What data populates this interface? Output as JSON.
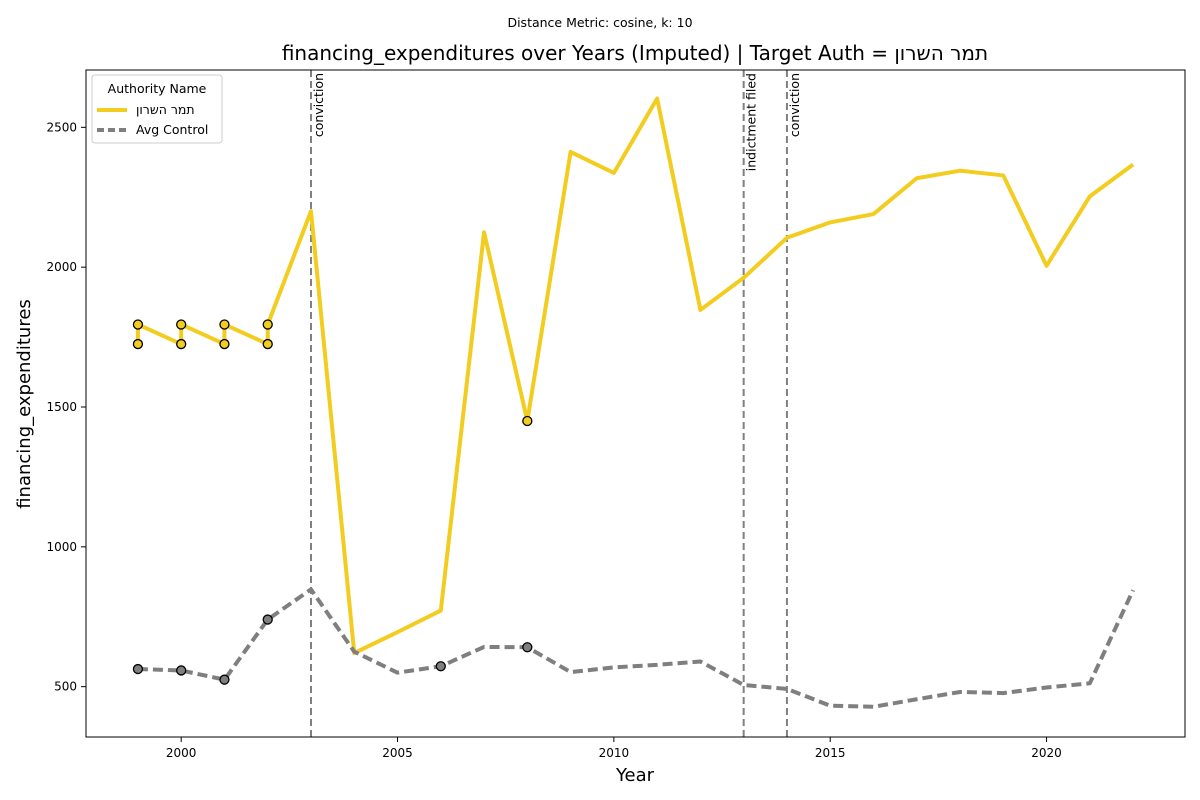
{
  "chart_data": {
    "type": "line",
    "suptitle": "Distance Metric: cosine, k: 10",
    "title": "financing_expenditures over Years (Imputed) | Target Auth = תמר השרון",
    "xlabel": "Year",
    "ylabel": "financing_expenditures",
    "xlim": [
      1997.8,
      2023.2
    ],
    "ylim": [
      320,
      2705
    ],
    "xticks": [
      2000,
      2005,
      2010,
      2015,
      2020
    ],
    "yticks": [
      500,
      1000,
      1500,
      2000,
      2500
    ],
    "legend": {
      "title": "Authority Name",
      "placement": "upper left"
    },
    "series": [
      {
        "name": "תמר השרון",
        "color": "#f2cd1f",
        "style": "solid",
        "points": [
          [
            1999,
            1725
          ],
          [
            1999,
            1795
          ],
          [
            2000,
            1725
          ],
          [
            2000,
            1795
          ],
          [
            2001,
            1725
          ],
          [
            2001,
            1795
          ],
          [
            2002,
            1725
          ],
          [
            2002,
            1795
          ],
          [
            2003,
            2200
          ],
          [
            2004,
            620
          ],
          [
            2005,
            695
          ],
          [
            2006,
            772
          ],
          [
            2007,
            2125
          ],
          [
            2008,
            1450
          ],
          [
            2009,
            2412
          ],
          [
            2010,
            2337
          ],
          [
            2011,
            2603
          ],
          [
            2012,
            1847
          ],
          [
            2013,
            1962
          ],
          [
            2014,
            2105
          ],
          [
            2015,
            2160
          ],
          [
            2016,
            2190
          ],
          [
            2017,
            2318
          ],
          [
            2018,
            2345
          ],
          [
            2019,
            2328
          ],
          [
            2020,
            2005
          ],
          [
            2021,
            2253
          ],
          [
            2022,
            2367
          ]
        ],
        "markers": [
          [
            1999,
            1725
          ],
          [
            1999,
            1795
          ],
          [
            2000,
            1725
          ],
          [
            2000,
            1795
          ],
          [
            2001,
            1725
          ],
          [
            2001,
            1795
          ],
          [
            2002,
            1725
          ],
          [
            2002,
            1795
          ],
          [
            2008,
            1450
          ]
        ],
        "marker_color": "#f2cd1f"
      },
      {
        "name": "Avg Control",
        "color": "#7f7f7f",
        "style": "dashed",
        "points": [
          [
            1999,
            563
          ],
          [
            2000,
            558
          ],
          [
            2001,
            525
          ],
          [
            2002,
            740
          ],
          [
            2003,
            848
          ],
          [
            2004,
            625
          ],
          [
            2005,
            550
          ],
          [
            2006,
            573
          ],
          [
            2007,
            642
          ],
          [
            2008,
            641
          ],
          [
            2009,
            552
          ],
          [
            2010,
            569
          ],
          [
            2011,
            578
          ],
          [
            2012,
            590
          ],
          [
            2013,
            506
          ],
          [
            2014,
            492
          ],
          [
            2015,
            432
          ],
          [
            2016,
            428
          ],
          [
            2017,
            455
          ],
          [
            2018,
            481
          ],
          [
            2019,
            477
          ],
          [
            2020,
            497
          ],
          [
            2021,
            512
          ],
          [
            2022,
            845
          ]
        ],
        "markers": [
          [
            1999,
            563
          ],
          [
            2000,
            558
          ],
          [
            2001,
            525
          ],
          [
            2002,
            740
          ],
          [
            2006,
            573
          ],
          [
            2008,
            641
          ]
        ],
        "marker_color": "#7f7f7f"
      }
    ],
    "events": [
      {
        "x": 2003,
        "label": "conviction"
      },
      {
        "x": 2013,
        "label": "indictment filed"
      },
      {
        "x": 2014,
        "label": "conviction"
      }
    ]
  }
}
